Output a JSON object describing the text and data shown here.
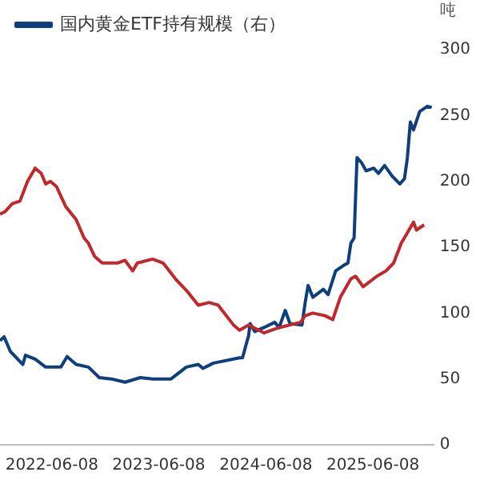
{
  "chart_data": {
    "type": "line",
    "ylabel": "吨",
    "legend": "top left",
    "line_style": "solid",
    "marker": "none",
    "grid": false,
    "xlim": [
      "2021-12-13",
      "2026-01-01"
    ],
    "xticks": [
      "2022-06-08",
      "2023-06-08",
      "2024-06-08",
      "2025-06-08"
    ],
    "ylim": [
      0,
      300
    ],
    "yticks": [
      0,
      50,
      100,
      150,
      200,
      250,
      300
    ],
    "series": [
      {
        "color": "#c0282d",
        "x": [
          "2021-12-13",
          "2021-12-30",
          "2022-01-24",
          "2022-02-19",
          "2022-03-17",
          "2022-04-12",
          "2022-05-03",
          "2022-05-18",
          "2022-06-03",
          "2022-06-24",
          "2022-07-25",
          "2022-08-30",
          "2022-09-26",
          "2022-10-11",
          "2022-11-01",
          "2022-11-27",
          "2023-01-18",
          "2023-02-13",
          "2023-03-11",
          "2023-03-27",
          "2023-05-18",
          "2023-06-23",
          "2023-08-04",
          "2023-09-15",
          "2023-10-21",
          "2023-11-27",
          "2023-12-28",
          "2024-02-18",
          "2024-03-10",
          "2024-04-10",
          "2024-06-01",
          "2024-07-23",
          "2024-10-04",
          "2024-10-20",
          "2024-11-15",
          "2024-12-27",
          "2025-01-22",
          "2025-02-17",
          "2025-03-25",
          "2025-04-10",
          "2025-05-06",
          "2025-06-22",
          "2025-07-23",
          "2025-08-18",
          "2025-09-13",
          "2025-10-04",
          "2025-10-25",
          "2025-11-04",
          "2025-11-30"
        ],
        "values": [
          175,
          177,
          183,
          185,
          200,
          210,
          206,
          198,
          200,
          196,
          181,
          171,
          157,
          153,
          143,
          138,
          138,
          140,
          132,
          138,
          141,
          138,
          126,
          116,
          106,
          108,
          106,
          91,
          87,
          91,
          85,
          89,
          93,
          98,
          100,
          98,
          95,
          112,
          126,
          128,
          120,
          128,
          132,
          138,
          153,
          161,
          169,
          163,
          167
        ]
      },
      {
        "name": "国内黄金ETF持有规模（右）",
        "color": "#0d3f7f",
        "x": [
          "2021-12-13",
          "2021-12-27",
          "2022-01-17",
          "2022-03-01",
          "2022-03-10",
          "2022-04-12",
          "2022-05-18",
          "2022-07-09",
          "2022-07-30",
          "2022-08-30",
          "2022-10-11",
          "2022-11-17",
          "2022-12-28",
          "2023-02-13",
          "2023-04-06",
          "2023-05-18",
          "2023-07-20",
          "2023-09-10",
          "2023-10-21",
          "2023-11-06",
          "2023-12-12",
          "2024-03-10",
          "2024-03-20",
          "2024-04-10",
          "2024-04-15",
          "2024-05-01",
          "2024-06-01",
          "2024-07-08",
          "2024-07-23",
          "2024-08-13",
          "2024-08-29",
          "2024-10-09",
          "2024-10-20",
          "2024-10-30",
          "2024-11-15",
          "2024-12-21",
          "2025-01-06",
          "2025-02-01",
          "2025-02-27",
          "2025-03-15",
          "2025-03-25",
          "2025-04-05",
          "2025-04-15",
          "2025-05-01",
          "2025-05-16",
          "2025-06-11",
          "2025-06-27",
          "2025-07-18",
          "2025-08-13",
          "2025-09-08",
          "2025-09-24",
          "2025-10-04",
          "2025-10-14",
          "2025-10-25",
          "2025-11-15",
          "2025-12-11",
          "2025-12-26"
        ],
        "values": [
          79,
          82,
          71,
          61,
          68,
          65,
          59,
          59,
          67,
          61,
          59,
          51,
          50,
          47.5,
          51,
          50,
          50,
          59,
          61,
          58,
          62,
          66,
          66,
          83,
          92,
          86,
          89,
          93,
          89,
          102,
          92,
          91,
          108,
          121,
          112,
          118,
          114,
          132,
          136,
          138,
          153,
          157,
          218,
          214,
          208,
          210,
          206,
          212,
          204,
          198,
          202,
          218,
          245,
          239,
          253,
          257,
          256
        ]
      }
    ]
  }
}
